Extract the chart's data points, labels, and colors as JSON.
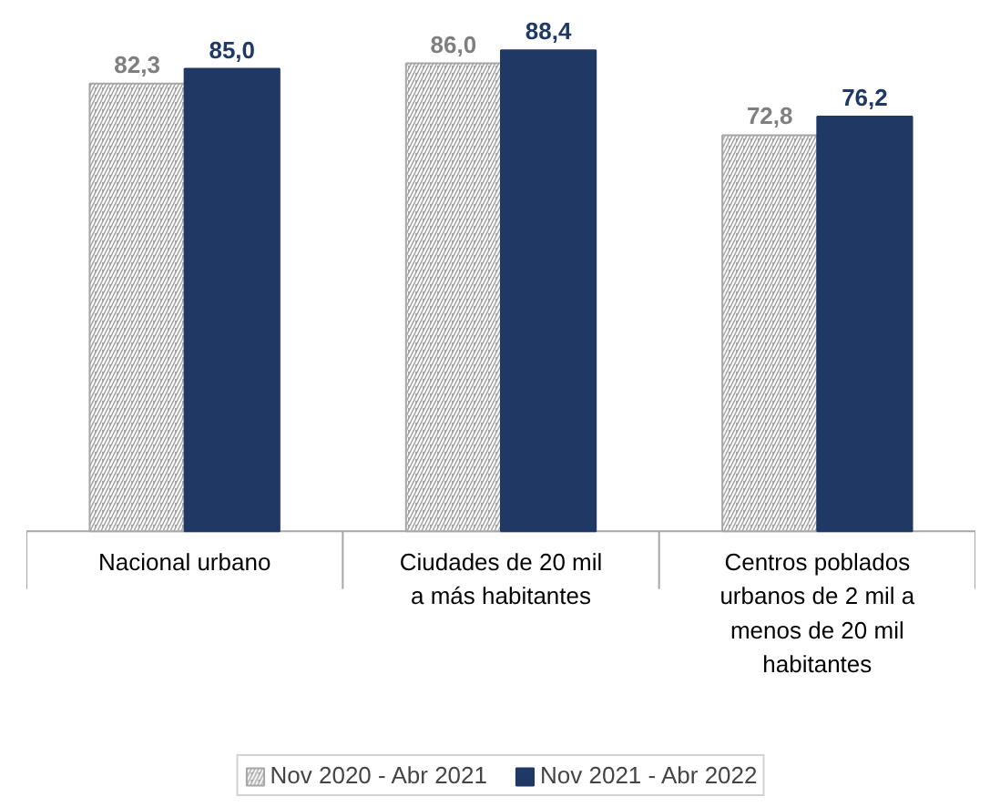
{
  "chart_data": {
    "type": "bar",
    "categories": [
      "Nacional urbano",
      "Ciudades de 20 mil a más habitantes",
      "Centros poblados urbanos de 2 mil a menos de 20 mil habitantes"
    ],
    "series": [
      {
        "name": "Nov 2020 - Abr 2021",
        "color": "#a6a6a6",
        "values": [
          82.3,
          86.0,
          72.8
        ],
        "value_labels": [
          "82,3",
          "86,0",
          "72,8"
        ]
      },
      {
        "name": "Nov 2021 - Abr 2022",
        "color": "#1f3864",
        "values": [
          85.0,
          88.4,
          76.2
        ],
        "value_labels": [
          "85,0",
          "88,4",
          "76,2"
        ]
      }
    ],
    "legend": "bottom"
  }
}
